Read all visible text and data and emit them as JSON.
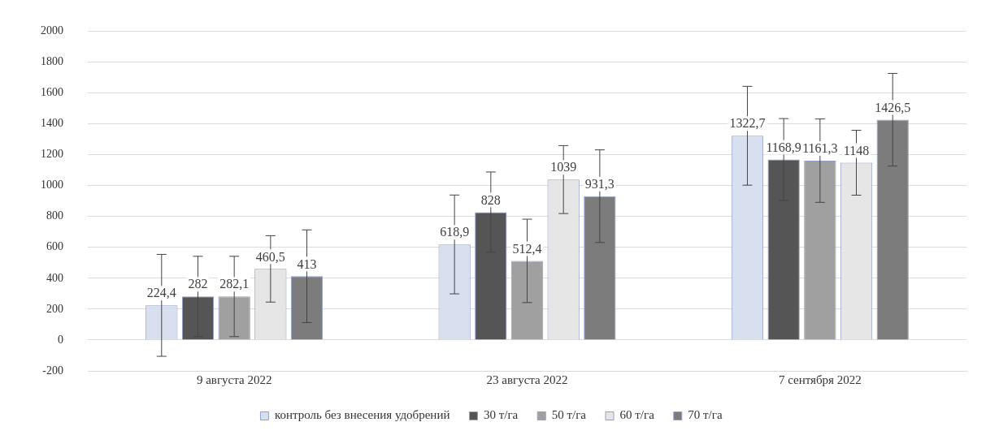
{
  "chart_data": {
    "type": "bar",
    "categories": [
      "9 августа 2022",
      "23 августа 2022",
      "7 сентября 2022"
    ],
    "series": [
      {
        "name": "контроль без внесения удобрений",
        "color": "#d8e0f0",
        "values": [
          224.4,
          618.9,
          1322.7
        ],
        "value_labels": [
          "224,4",
          "618,9",
          "1322,7"
        ],
        "errors": [
          330,
          320,
          320
        ]
      },
      {
        "name": "30 т/га",
        "color": "#555555",
        "values": [
          282,
          828,
          1168.9
        ],
        "value_labels": [
          "282",
          "828",
          "1168,9"
        ],
        "errors": [
          260,
          260,
          265
        ]
      },
      {
        "name": "50 т/га",
        "color": "#a0a0a0",
        "values": [
          282.1,
          512.4,
          1161.3
        ],
        "value_labels": [
          "282,1",
          "512,4",
          "1161,3"
        ],
        "errors": [
          260,
          270,
          270
        ]
      },
      {
        "name": "60 т/га",
        "color": "#e6e6e6",
        "values": [
          460.5,
          1039,
          1148
        ],
        "value_labels": [
          "460,5",
          "1039",
          "1148"
        ],
        "errors": [
          215,
          220,
          210
        ]
      },
      {
        "name": "70 т/га",
        "color": "#7c7c7c",
        "values": [
          413,
          931.3,
          1426.5
        ],
        "value_labels": [
          "413",
          "931,3",
          "1426,5"
        ],
        "errors": [
          300,
          300,
          300
        ]
      }
    ],
    "ylim": [
      -200,
      2000
    ],
    "yticks": [
      -200,
      0,
      200,
      400,
      600,
      800,
      1000,
      1200,
      1400,
      1600,
      1800,
      2000
    ],
    "grid": "y",
    "legend": "bottom"
  }
}
